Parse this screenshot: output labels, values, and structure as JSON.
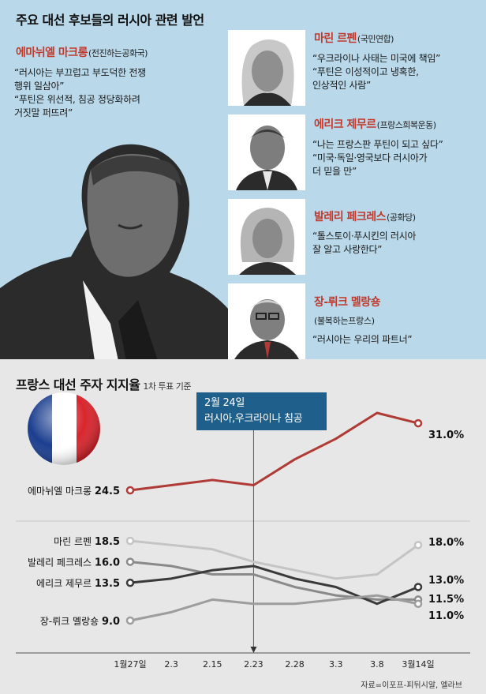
{
  "headline": "주요 대선 후보들의 러시아 관련 발언",
  "candidates": [
    {
      "name": "에마뉘엘 마크롱",
      "party": "(전진하는공화국)",
      "quote": "“러시아는 부끄럽고 부도덕한 전쟁\n 행위 일삼아”\n“푸틴은 위선적, 침공 정당화하려\n 거짓말 퍼뜨려”"
    },
    {
      "name": "마린 르펜",
      "party": "(국민연합)",
      "quote": "“우크라이나 사태는 미국에 책임”\n“푸틴은 이성적이고 냉혹한,\n 인상적인 사람”"
    },
    {
      "name": "에리크 제무르",
      "party": "(프랑스희복운동)",
      "quote": "“나는 프랑스판 푸틴이 되고 싶다”\n“미국·독일·영국보다 러시아가\n 더 믿을 만”"
    },
    {
      "name": "발레리 페크레스",
      "party": "(공화당)",
      "quote": "“톨스토이·푸시킨의 러시아\n 잘 알고 사랑한다”"
    },
    {
      "name": "장-뤼크 멜랑숑",
      "party": "(불복하는프랑스)",
      "quote": "“러시아는 우리의 파트너”"
    }
  ],
  "chart_title": "프랑스 대선 주자 지지율",
  "chart_subtitle": "1차 투표 기준",
  "annotation": {
    "line1": "2월 24일",
    "line2": "러시아,우크라이나 침공"
  },
  "source": "자료=이포프-피뒤시알, 엘라브",
  "colors": {
    "macron": "#b03a35",
    "lepen": "#c4c4c4",
    "pecresse": "#8a8a8a",
    "zemmour": "#3a3a3a",
    "melenchon": "#9d9d9d",
    "annotation_bg": "#1f5f8b",
    "top_bg": "#b9d8ea",
    "chart_bg": "#e7e7e7"
  },
  "chart_data": {
    "type": "line",
    "x": [
      "1월27일",
      "2.3",
      "2.15",
      "2.23",
      "2.28",
      "3.3",
      "3.8",
      "3월14일"
    ],
    "series": [
      {
        "name": "에마뉘엘 마크롱",
        "start_label": "24.5",
        "end_label": "31.0%",
        "values": [
          24.5,
          25.0,
          25.5,
          25.0,
          27.5,
          29.5,
          32.0,
          31.0
        ]
      },
      {
        "name": "마린 르펜",
        "start_label": "18.5",
        "end_label": "18.0%",
        "values": [
          18.5,
          18.0,
          17.5,
          16.0,
          15.0,
          14.0,
          14.5,
          18.0
        ]
      },
      {
        "name": "발레리 페크레스",
        "start_label": "16.0",
        "end_label": "11.5%",
        "values": [
          16.0,
          15.5,
          14.5,
          14.5,
          13.0,
          12.0,
          11.5,
          11.5
        ]
      },
      {
        "name": "에리크 제무르",
        "start_label": "13.5",
        "end_label": "13.0%",
        "values": [
          13.5,
          14.0,
          15.0,
          15.5,
          14.0,
          13.0,
          11.0,
          13.0
        ]
      },
      {
        "name": "장-뤼크 멜랑숑",
        "start_label": "9.0",
        "end_label": "11.0%",
        "values": [
          9.0,
          10.0,
          11.5,
          11.0,
          11.0,
          11.5,
          12.0,
          11.0
        ]
      }
    ],
    "annotation_x": "2.23",
    "ylim": [
      8,
      33
    ],
    "grid": false,
    "legend": "inline-left"
  }
}
